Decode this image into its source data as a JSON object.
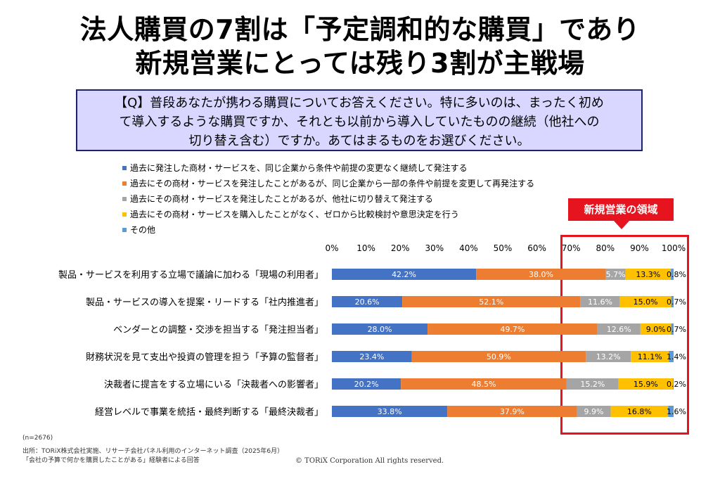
{
  "headline": {
    "line1": "法人購買の7割は「予定調和的な購買」であり",
    "line2": "新規営業にとっては残り3割が主戦場"
  },
  "question": {
    "line1": "【Q】普段あなたが携わる購買についてお答えください。特に多いのは、まったく初め",
    "line2": "て導入するような購買ですか、それとも以前から導入していたものの継続（他社への",
    "line3": "切り替え含む）ですか。あてはまるものをお選びください。"
  },
  "callout": {
    "label": "新規営業の領域"
  },
  "footer": {
    "n_note": "(n=2676)",
    "source_line1": "出所：TORiX株式会社実施、リサーチ会社パネル利用のインターネット調査（2025年6月）",
    "source_line2": "「会社の予算で何かを購買したことがある」経験者による回答",
    "copyright": "© TORiX Corporation All rights reserved."
  },
  "chart_data": {
    "type": "bar",
    "orientation": "horizontal",
    "stacked": true,
    "xlim": [
      0,
      100
    ],
    "ticks": [
      "0%",
      "10%",
      "20%",
      "30%",
      "40%",
      "50%",
      "60%",
      "70%",
      "80%",
      "90%",
      "100%"
    ],
    "legend_placement": "top",
    "categories": [
      "製品・サービスを利用する立場で議論に加わる「現場の利用者」",
      "製品・サービスの導入を提案・リードする「社内推進者」",
      "ベンダーとの調整・交渉を担当する「発注担当者」",
      "財務状況を見て支出や投資の管理を担う「予算の監督者」",
      "決裁者に提言をする立場にいる「決裁者への影響者」",
      "経営レベルで事業を統括・最終判断する「最終決裁者」"
    ],
    "series": [
      {
        "name": "過去に発注した商材・サービスを、同じ企業から条件や前提の変更なく継続して発注する",
        "color": "#4472c4",
        "label_color": "#ffffff",
        "values": [
          42.2,
          20.6,
          28.0,
          23.4,
          20.2,
          33.8
        ],
        "labels": [
          "42.2%",
          "20.6%",
          "28.0%",
          "23.4%",
          "20.2%",
          "33.8%"
        ]
      },
      {
        "name": "過去にその商材・サービスを発注したことがあるが、同じ企業から一部の条件や前提を変更して再発注する",
        "color": "#ed7d31",
        "label_color": "#ffffff",
        "values": [
          38.0,
          52.1,
          49.7,
          50.9,
          48.5,
          37.9
        ],
        "labels": [
          "38.0%",
          "52.1%",
          "49.7%",
          "50.9%",
          "48.5%",
          "37.9%"
        ]
      },
      {
        "name": "過去にその商材・サービスを発注したことがあるが、他社に切り替えて発注する",
        "color": "#a5a5a5",
        "label_color": "#ffffff",
        "values": [
          5.7,
          11.6,
          12.6,
          13.2,
          15.2,
          9.9
        ],
        "labels": [
          "5.7%",
          "11.6%",
          "12.6%",
          "13.2%",
          "15.2%",
          "9.9%"
        ]
      },
      {
        "name": "過去にその商材・サービスを購入したことがなく、ゼロから比較検討や意思決定を行う",
        "color": "#ffc000",
        "label_color": "#000000",
        "values": [
          13.3,
          15.0,
          9.0,
          11.1,
          15.9,
          16.8
        ],
        "labels": [
          "13.3%",
          "15.0%",
          "9.0%",
          "11.1%",
          "15.9%",
          "16.8%"
        ]
      },
      {
        "name": "その他",
        "color": "#5b9bd5",
        "label_color": "#000000",
        "values": [
          0.8,
          0.7,
          0.7,
          1.4,
          0.2,
          1.6
        ],
        "labels": [
          "0.8%",
          "0.7%",
          "0.7%",
          "1.4%",
          "0.2%",
          "1.6%"
        ]
      }
    ]
  }
}
